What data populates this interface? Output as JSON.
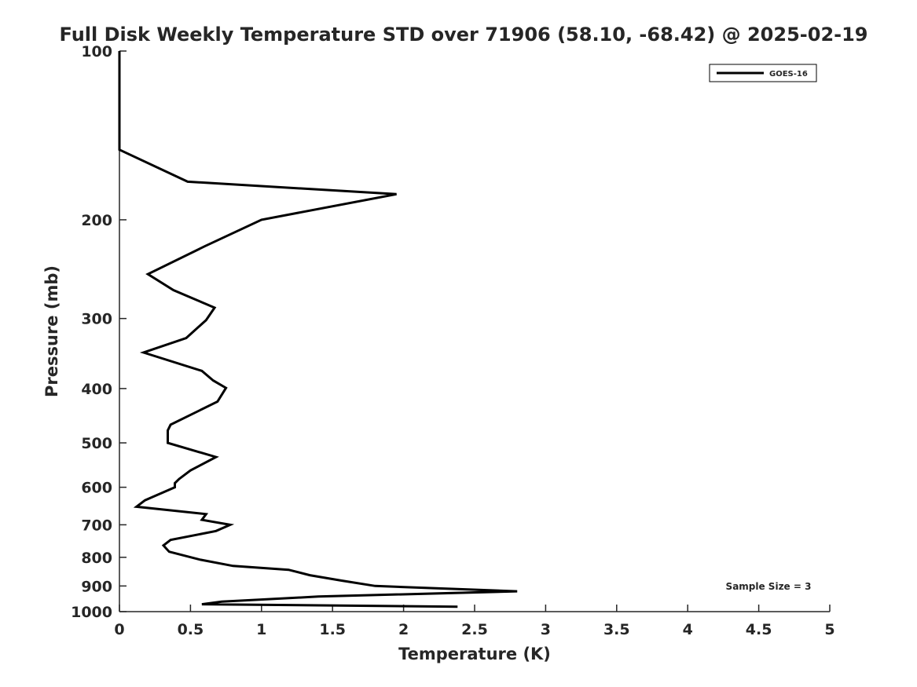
{
  "chart_data": {
    "type": "line",
    "title": "Full Disk Weekly Temperature STD over 71906 (58.10, -68.42) @ 2025-02-19",
    "xlabel": "Temperature (K)",
    "ylabel": "Pressure (mb)",
    "xlim": [
      0,
      5
    ],
    "ylim": [
      100,
      1000
    ],
    "y_scale": "log",
    "y_reversed": true,
    "grid": false,
    "legend_position": "top-right",
    "x_ticks": [
      "0",
      "0.5",
      "1",
      "1.5",
      "2",
      "2.5",
      "3",
      "3.5",
      "4",
      "4.5",
      "5"
    ],
    "y_ticks": [
      "100",
      "200",
      "300",
      "400",
      "500",
      "600",
      "700",
      "800",
      "900",
      "1000"
    ],
    "annotation": "Sample Size = 3",
    "series": [
      {
        "name": "GOES-16",
        "color": "#000000",
        "points": [
          [
            0.0,
            100
          ],
          [
            0.0,
            150
          ],
          [
            0.48,
            171
          ],
          [
            1.95,
            180
          ],
          [
            1.0,
            200
          ],
          [
            0.6,
            223
          ],
          [
            0.2,
            250
          ],
          [
            0.38,
            267
          ],
          [
            0.67,
            287
          ],
          [
            0.61,
            302
          ],
          [
            0.47,
            325
          ],
          [
            0.17,
            345
          ],
          [
            0.58,
            372
          ],
          [
            0.66,
            387
          ],
          [
            0.75,
            399
          ],
          [
            0.69,
            422
          ],
          [
            0.36,
            464
          ],
          [
            0.34,
            475
          ],
          [
            0.34,
            500
          ],
          [
            0.68,
            530
          ],
          [
            0.5,
            560
          ],
          [
            0.42,
            580
          ],
          [
            0.39,
            590
          ],
          [
            0.39,
            600
          ],
          [
            0.18,
            633
          ],
          [
            0.12,
            650
          ],
          [
            0.61,
            670
          ],
          [
            0.58,
            686
          ],
          [
            0.78,
            700
          ],
          [
            0.68,
            718
          ],
          [
            0.36,
            745
          ],
          [
            0.31,
            762
          ],
          [
            0.35,
            782
          ],
          [
            0.57,
            808
          ],
          [
            0.8,
            829
          ],
          [
            1.19,
            842
          ],
          [
            1.34,
            861
          ],
          [
            1.56,
            880
          ],
          [
            1.8,
            900
          ],
          [
            2.8,
            920
          ],
          [
            1.4,
            940
          ],
          [
            0.72,
            960
          ],
          [
            0.58,
            970
          ],
          [
            2.38,
            980
          ]
        ]
      }
    ]
  }
}
